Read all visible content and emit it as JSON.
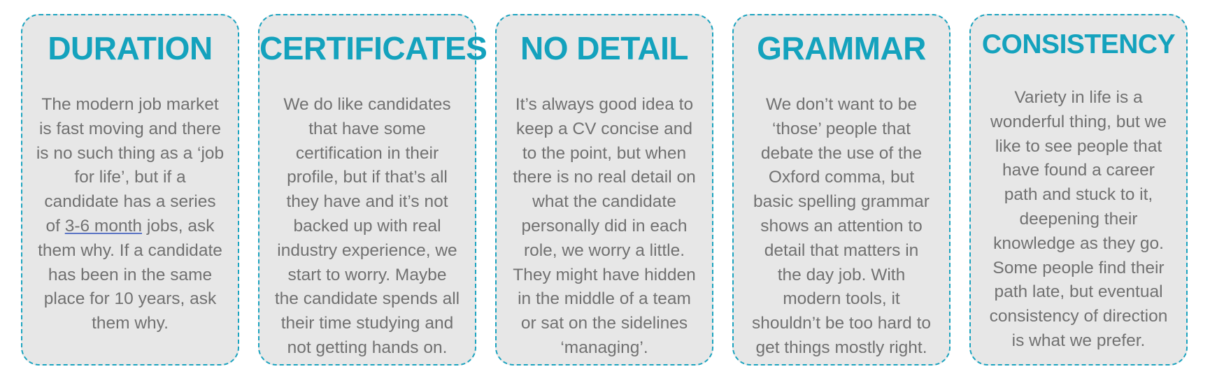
{
  "cards": [
    {
      "title": "DURATION",
      "lines": [
        "The modern job market",
        "is fast moving and there",
        "is no such thing as a ‘job",
        "for life’, but if a",
        "candidate has a series"
      ],
      "line6_pre": "of ",
      "line6_link": "3-6 month",
      "line6_post": " jobs, ask",
      "lines2": [
        "them why. If a candidate",
        "has been in the same",
        "place for 10 years, ask",
        "them why."
      ]
    },
    {
      "title": "CERTIFICATES",
      "lines": [
        "We do like candidates",
        "that have some",
        "certification in their",
        "profile, but if that’s all",
        "they have and it’s not",
        "backed up with real",
        "industry experience, we",
        "start to worry. Maybe",
        "the candidate spends all",
        "their time studying and",
        "not getting hands on."
      ]
    },
    {
      "title": "NO DETAIL",
      "lines": [
        "It’s always good idea to",
        "keep a CV concise and",
        "to the point, but when",
        "there is no real detail on",
        "what the candidate",
        "personally did in each",
        "role, we worry a little.",
        "They might have hidden",
        "in the middle of a team",
        "or sat on the sidelines",
        "‘managing’."
      ]
    },
    {
      "title": "GRAMMAR",
      "lines": [
        "We don’t want to be",
        "‘those’ people that",
        "debate the use of the",
        "Oxford comma, but",
        "basic spelling grammar",
        "shows an attention to",
        "detail that matters in",
        "the day job. With",
        "modern tools, it",
        "shouldn’t be too hard to",
        "get things mostly right."
      ]
    },
    {
      "title": "CONSISTENCY",
      "lines": [
        "Variety in life is a",
        "wonderful thing, but we",
        "like to see people that",
        "have found a career",
        "path and stuck to it,",
        "deepening their",
        "knowledge as they go.",
        "Some people find their",
        "path late, but eventual",
        "consistency of direction",
        "is what we prefer."
      ]
    }
  ]
}
